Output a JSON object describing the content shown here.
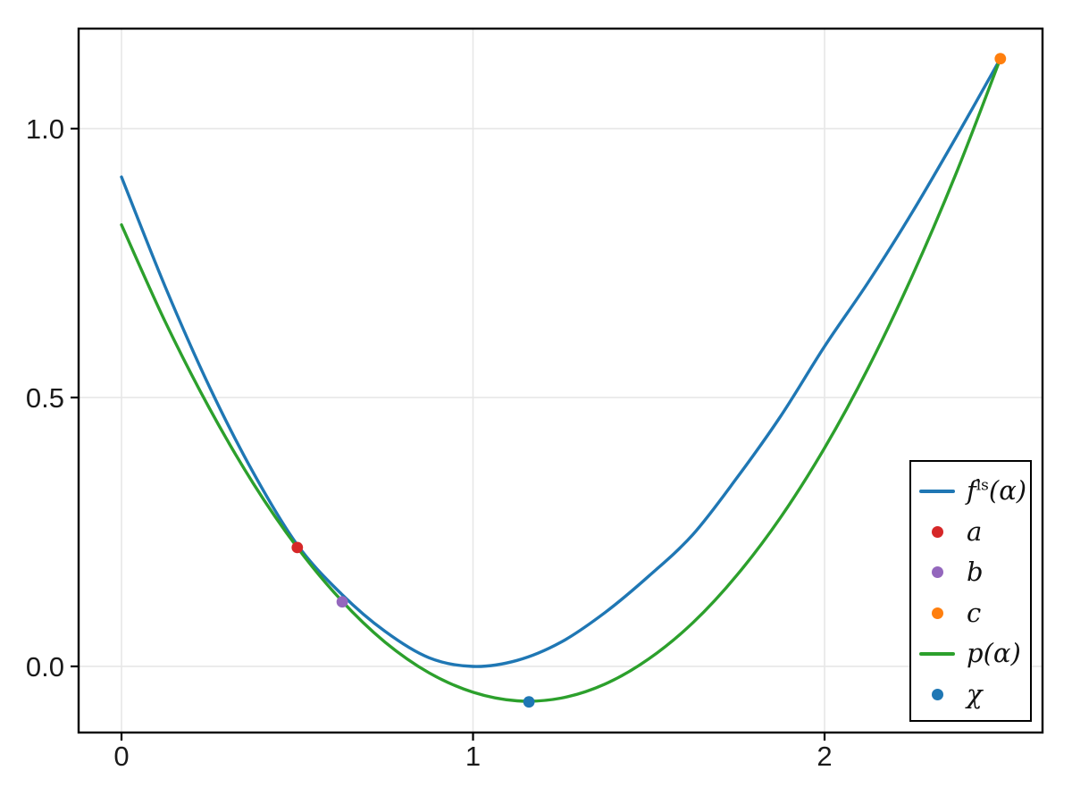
{
  "figure": {
    "background": "#ffffff"
  },
  "chart_data": {
    "type": "line",
    "title": "",
    "xlabel": "",
    "ylabel": "",
    "xlim": [
      -0.122,
      2.62
    ],
    "ylim": [
      -0.123,
      1.186
    ],
    "grid": true,
    "x_ticks": {
      "values": [
        0,
        1,
        2
      ],
      "labels": [
        "0",
        "1",
        "2"
      ]
    },
    "y_ticks": {
      "values": [
        0.0,
        0.5,
        1.0
      ],
      "labels": [
        "0.0",
        "0.5",
        "1.0"
      ]
    },
    "x": [
      0,
      0.125,
      0.25,
      0.375,
      0.5,
      0.625,
      0.75,
      0.875,
      1.0,
      1.125,
      1.25,
      1.375,
      1.5,
      1.625,
      1.75,
      1.875,
      2.0,
      2.125,
      2.25,
      2.375,
      2.5
    ],
    "series": [
      {
        "name": "f^{ls}(α)",
        "color": "#1f77b4",
        "y": [
          0.91,
          0.705,
          0.52,
          0.36,
          0.226,
          0.135,
          0.065,
          0.016,
          0.0,
          0.011,
          0.045,
          0.1,
          0.168,
          0.245,
          0.35,
          0.465,
          0.595,
          0.715,
          0.845,
          0.985,
          1.13
        ]
      },
      {
        "name": "p(α)",
        "color": "#2ca02c",
        "y": [
          0.821,
          0.64,
          0.48,
          0.34,
          0.221,
          0.123,
          0.045,
          -0.012,
          -0.048,
          -0.064,
          -0.059,
          -0.033,
          0.014,
          0.081,
          0.169,
          0.277,
          0.406,
          0.556,
          0.727,
          0.918,
          1.13
        ]
      }
    ],
    "points": [
      {
        "name": "a",
        "color": "#d62728",
        "x": 0.5,
        "y": 0.221
      },
      {
        "name": "b",
        "color": "#9467bd",
        "x": 0.628,
        "y": 0.12
      },
      {
        "name": "c",
        "color": "#ff7f0e",
        "x": 2.5,
        "y": 1.13
      },
      {
        "name": "χ",
        "color": "#1f77b4",
        "x": 1.159,
        "y": -0.066
      }
    ],
    "legend": {
      "position": "bottom-right",
      "entries": [
        {
          "label": "f^{ls}(α)",
          "marker": "line",
          "color": "#1f77b4"
        },
        {
          "label": "a",
          "marker": "dot",
          "color": "#d62728"
        },
        {
          "label": "b",
          "marker": "dot",
          "color": "#9467bd"
        },
        {
          "label": "c",
          "marker": "dot",
          "color": "#ff7f0e"
        },
        {
          "label": "p(α)",
          "marker": "line",
          "color": "#2ca02c"
        },
        {
          "label": "χ",
          "marker": "dot",
          "color": "#1f77b4"
        }
      ]
    }
  },
  "colors": {
    "grid": "#e7e7e7",
    "spine": "#000000",
    "tick_labels": "#1a1a1a",
    "legend_border": "#000000",
    "legend_bg": "#ffffff"
  }
}
